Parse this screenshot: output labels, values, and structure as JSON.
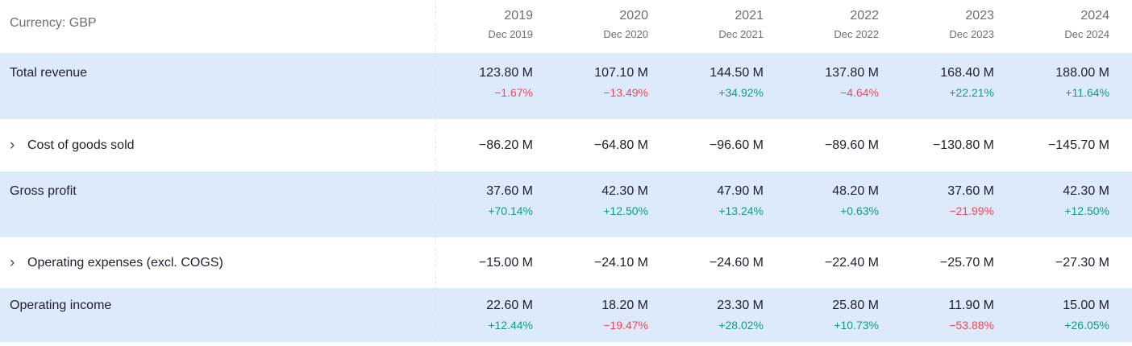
{
  "header": {
    "currency_label": "Currency: GBP",
    "columns": [
      {
        "year": "2019",
        "period": "Dec 2019"
      },
      {
        "year": "2020",
        "period": "Dec 2020"
      },
      {
        "year": "2021",
        "period": "Dec 2021"
      },
      {
        "year": "2022",
        "period": "Dec 2022"
      },
      {
        "year": "2023",
        "period": "Dec 2023"
      },
      {
        "year": "2024",
        "period": "Dec 2024"
      }
    ]
  },
  "icons": {
    "expand_chevron": "›"
  },
  "colors": {
    "positive_change": "#0d9d87",
    "negative_change": "#f5455a",
    "highlight_row_background": "#ddeaf9",
    "muted_text": "#6a6e79",
    "text": "#1c2030"
  },
  "rows": [
    {
      "label": "Total revenue",
      "expandable": false,
      "highlighted": true,
      "cells": [
        {
          "value": "123.80 M",
          "change": "−1.67%"
        },
        {
          "value": "107.10 M",
          "change": "−13.49%"
        },
        {
          "value": "144.50 M",
          "change": "+34.92%"
        },
        {
          "value": "137.80 M",
          "change": "−4.64%"
        },
        {
          "value": "168.40 M",
          "change": "+22.21%"
        },
        {
          "value": "188.00 M",
          "change": "+11.64%"
        }
      ]
    },
    {
      "label": "Cost of goods sold",
      "expandable": true,
      "highlighted": false,
      "cells": [
        {
          "value": "−86.20 M"
        },
        {
          "value": "−64.80 M"
        },
        {
          "value": "−96.60 M"
        },
        {
          "value": "−89.60 M"
        },
        {
          "value": "−130.80 M"
        },
        {
          "value": "−145.70 M"
        }
      ]
    },
    {
      "label": "Gross profit",
      "expandable": false,
      "highlighted": true,
      "cells": [
        {
          "value": "37.60 M",
          "change": "+70.14%"
        },
        {
          "value": "42.30 M",
          "change": "+12.50%"
        },
        {
          "value": "47.90 M",
          "change": "+13.24%"
        },
        {
          "value": "48.20 M",
          "change": "+0.63%"
        },
        {
          "value": "37.60 M",
          "change": "−21.99%"
        },
        {
          "value": "42.30 M",
          "change": "+12.50%"
        }
      ]
    },
    {
      "label": "Operating expenses (excl. COGS)",
      "expandable": true,
      "highlighted": false,
      "cells": [
        {
          "value": "−15.00 M"
        },
        {
          "value": "−24.10 M"
        },
        {
          "value": "−24.60 M"
        },
        {
          "value": "−22.40 M"
        },
        {
          "value": "−25.70 M"
        },
        {
          "value": "−27.30 M"
        }
      ]
    },
    {
      "label": "Operating income",
      "expandable": false,
      "highlighted": true,
      "cells": [
        {
          "value": "22.60 M",
          "change": "+12.44%"
        },
        {
          "value": "18.20 M",
          "change": "−19.47%"
        },
        {
          "value": "23.30 M",
          "change": "+28.02%"
        },
        {
          "value": "25.80 M",
          "change": "+10.73%"
        },
        {
          "value": "11.90 M",
          "change": "−53.88%"
        },
        {
          "value": "15.00 M",
          "change": "+26.05%"
        }
      ]
    }
  ]
}
